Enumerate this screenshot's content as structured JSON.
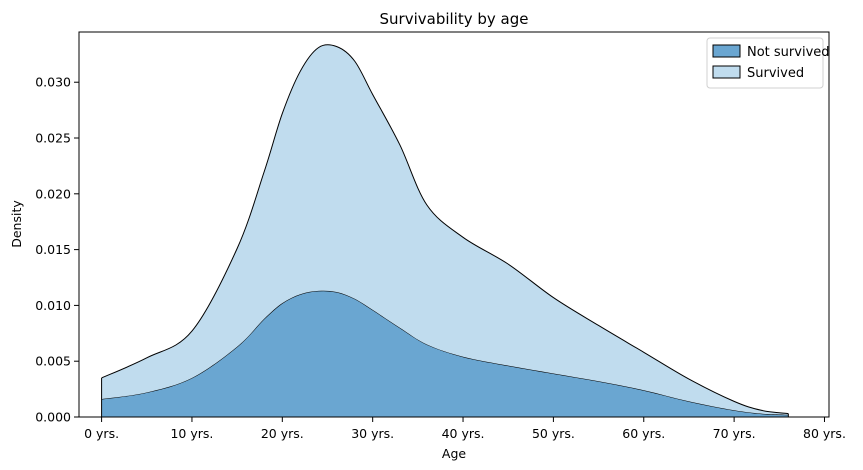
{
  "chart_data": {
    "type": "area",
    "stacked": true,
    "title": "Survivability by age",
    "xlabel": "Age",
    "ylabel": "Density",
    "xlim": [
      -2.5,
      80.5
    ],
    "ylim": [
      0,
      0.0345
    ],
    "x_ticks": [
      0,
      10,
      20,
      30,
      40,
      50,
      60,
      70,
      80
    ],
    "x_tick_labels": [
      "0 yrs.",
      "10 yrs.",
      "20 yrs.",
      "30 yrs.",
      "40 yrs.",
      "50 yrs.",
      "60 yrs.",
      "70 yrs.",
      "80 yrs."
    ],
    "y_ticks": [
      0,
      0.005,
      0.01,
      0.015,
      0.02,
      0.025,
      0.03
    ],
    "y_tick_labels": [
      "0.000",
      "0.005",
      "0.010",
      "0.015",
      "0.020",
      "0.025",
      "0.030"
    ],
    "legend_position": "top-right",
    "x": [
      0,
      5,
      10,
      15,
      18,
      20,
      22,
      24,
      26,
      28,
      30,
      33,
      36,
      40,
      45,
      50,
      55,
      60,
      65,
      70,
      73,
      76
    ],
    "series": [
      {
        "name": "Not survived",
        "color": "#6aa6d1",
        "values": [
          0.0016,
          0.0022,
          0.0035,
          0.0063,
          0.0088,
          0.0102,
          0.011,
          0.0113,
          0.0112,
          0.0106,
          0.0096,
          0.008,
          0.0065,
          0.0054,
          0.0046,
          0.0039,
          0.0032,
          0.0024,
          0.0014,
          0.0006,
          0.0003,
          0.0002
        ]
      },
      {
        "name": "Survived",
        "color": "#c0dcee",
        "values": [
          0.0019,
          0.0031,
          0.0042,
          0.0088,
          0.0132,
          0.017,
          0.02,
          0.0218,
          0.022,
          0.0213,
          0.0193,
          0.0164,
          0.0125,
          0.0107,
          0.0091,
          0.0068,
          0.005,
          0.0034,
          0.002,
          0.0008,
          0.0003,
          0.0001
        ]
      }
    ]
  }
}
